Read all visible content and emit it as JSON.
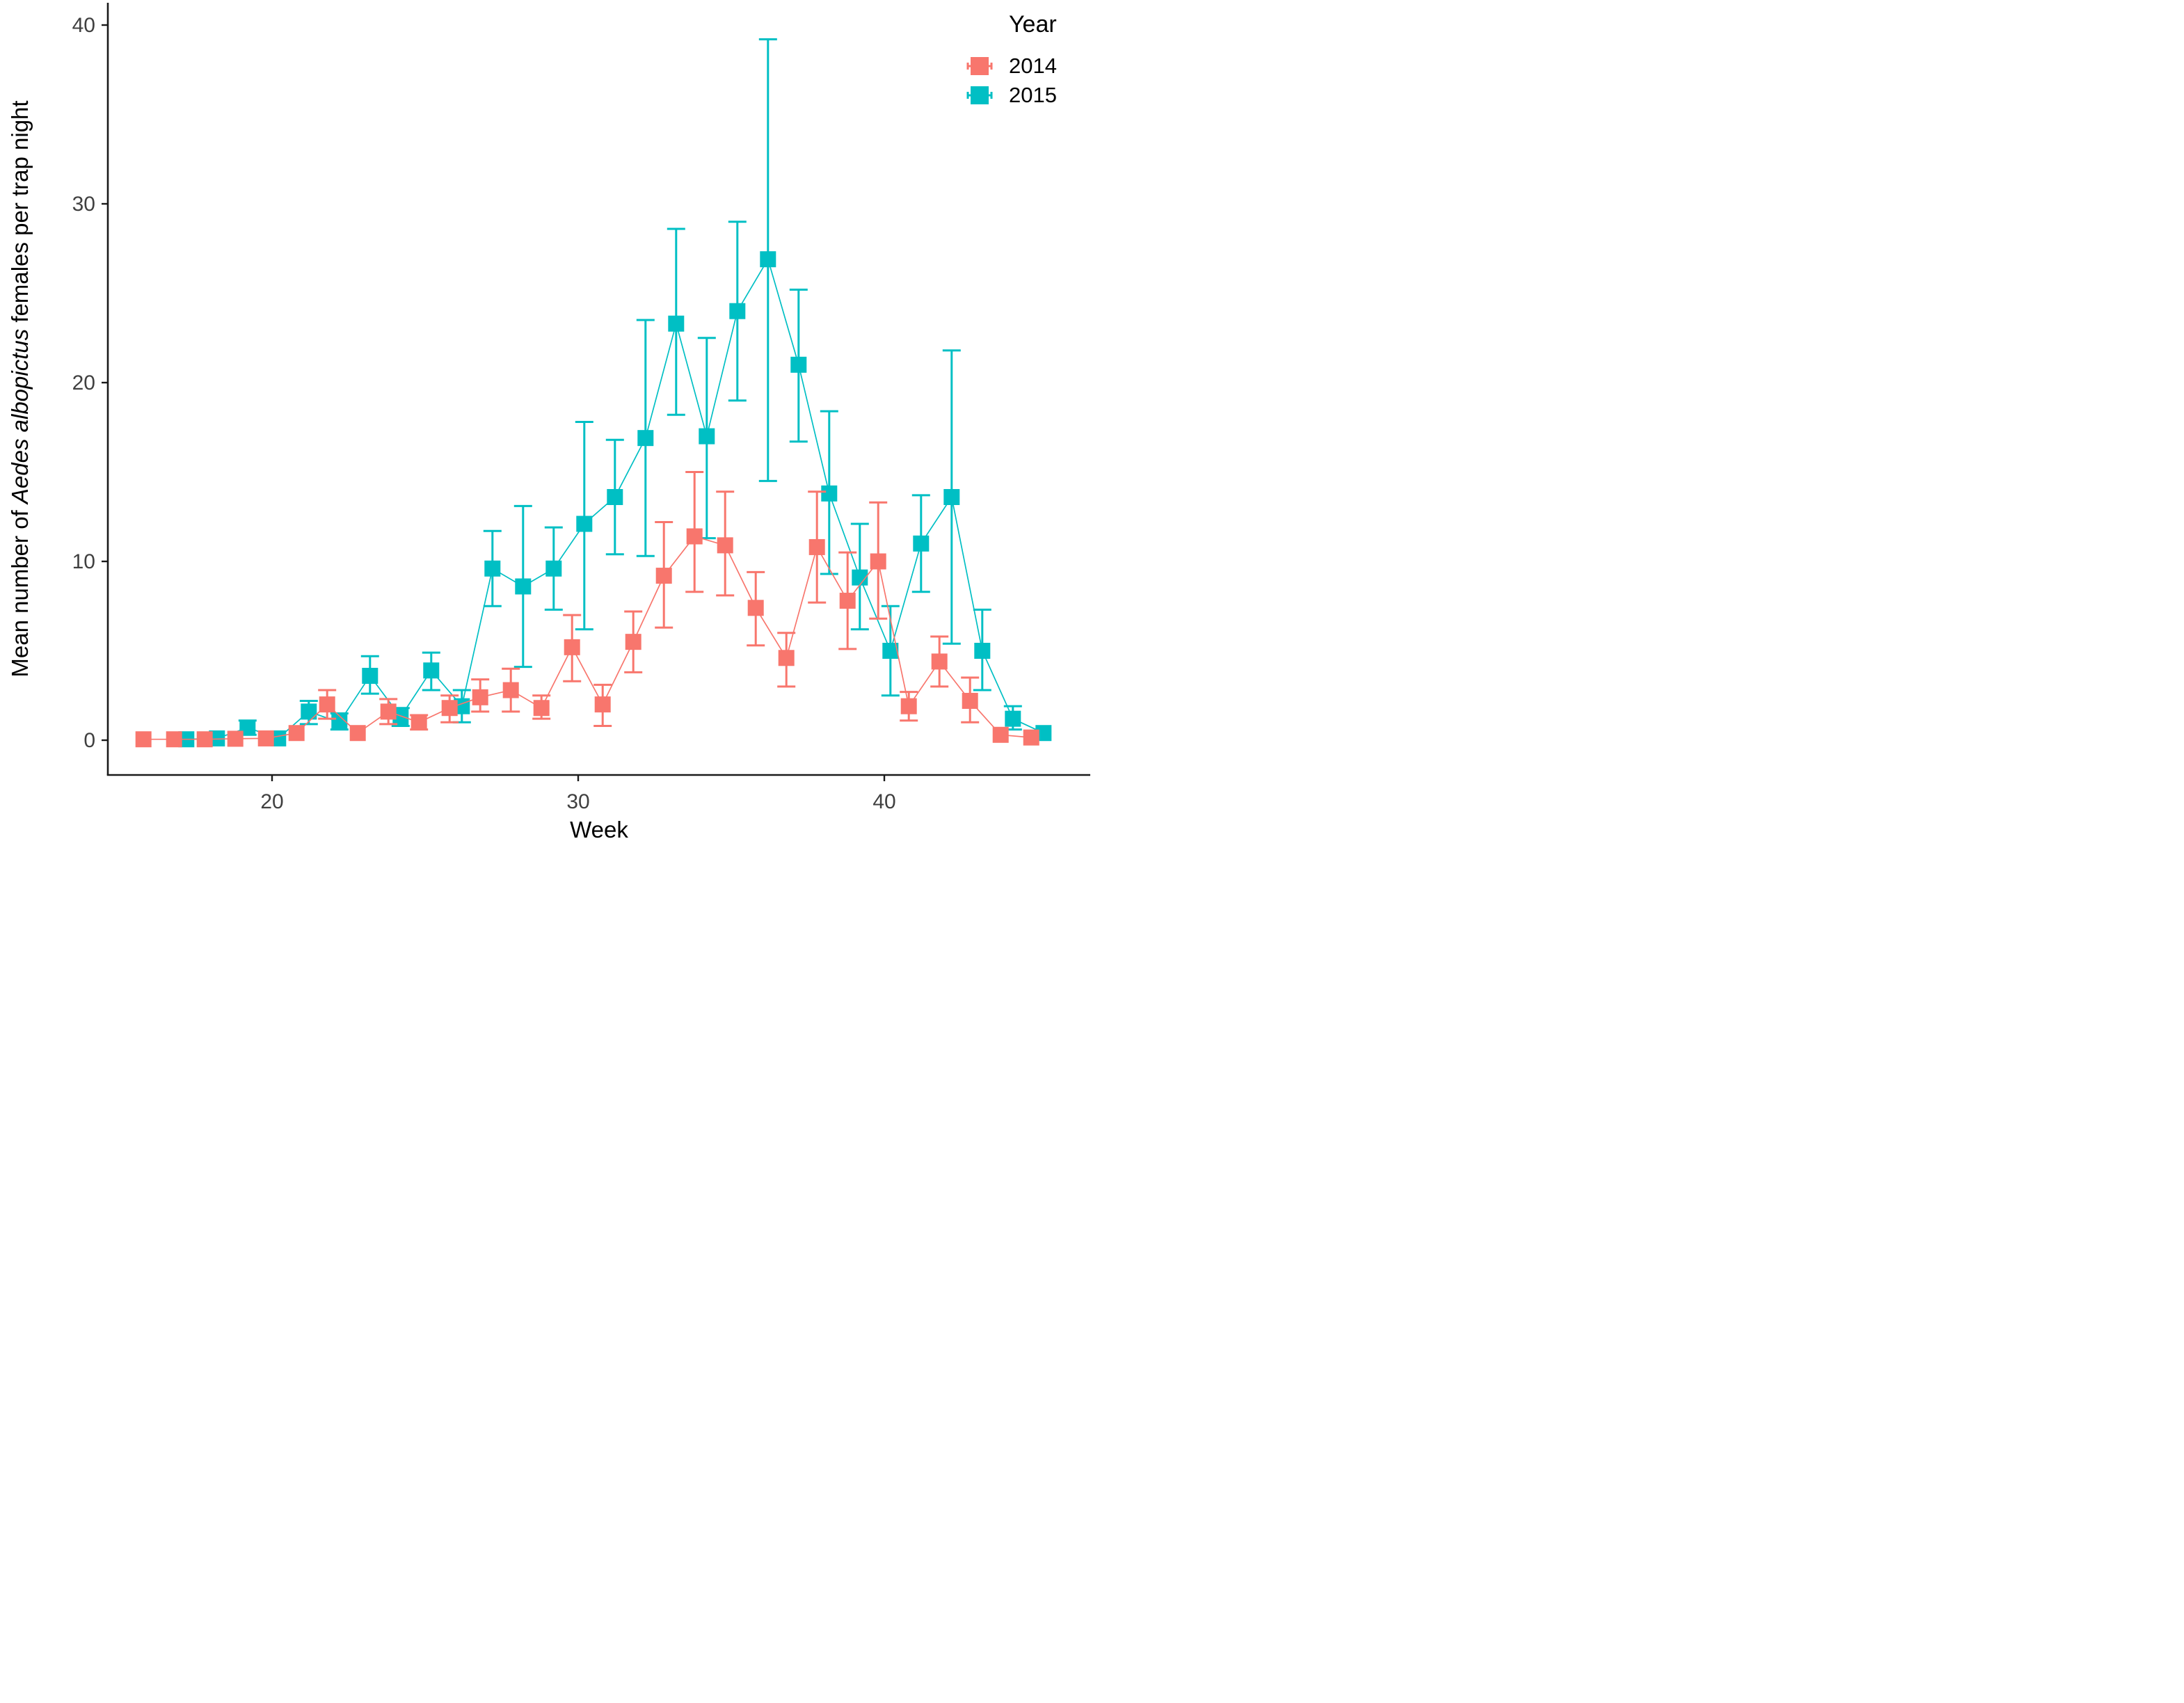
{
  "figure": {
    "background": "#ffffff",
    "axis_color": "#1a1a1a",
    "tick_label_color": "#404040"
  },
  "chart_data": {
    "type": "line",
    "subtype": "dodged points with error bars (ggplot classic theme, no grid)",
    "title": "",
    "xlabel": "Week",
    "ylabel_prefix": "Mean number of ",
    "ylabel_italic": "Aedes albopictus",
    "ylabel_suffix": " females per trap night",
    "x_ticks": [
      20,
      30,
      40
    ],
    "y_ticks": [
      0,
      10,
      20,
      30,
      40
    ],
    "xlim": [
      14.6,
      46.4
    ],
    "ylim": [
      -2.2,
      41.4
    ],
    "grid": false,
    "marker": "square",
    "error_bars": true,
    "legend": {
      "title": "Year",
      "position": "top-right",
      "entries": [
        {
          "label": "2014",
          "color": "#F8766D"
        },
        {
          "label": "2015",
          "color": "#00BFC4"
        }
      ]
    },
    "series": [
      {
        "name": "2015",
        "color": "#00BFC4",
        "dodge": 0.2,
        "points": [
          {
            "week": 17,
            "mean": 0.05,
            "lo": 0.0,
            "hi": 0.15
          },
          {
            "week": 18,
            "mean": 0.1,
            "lo": 0.0,
            "hi": 0.25
          },
          {
            "week": 19,
            "mean": 0.7,
            "lo": 0.3,
            "hi": 1.1
          },
          {
            "week": 20,
            "mean": 0.1,
            "lo": 0.0,
            "hi": 0.3
          },
          {
            "week": 21,
            "mean": 1.6,
            "lo": 0.9,
            "hi": 2.2
          },
          {
            "week": 22,
            "mean": 1.0,
            "lo": 0.6,
            "hi": 1.5
          },
          {
            "week": 23,
            "mean": 3.6,
            "lo": 2.6,
            "hi": 4.7
          },
          {
            "week": 24,
            "mean": 1.3,
            "lo": 0.8,
            "hi": 1.8
          },
          {
            "week": 25,
            "mean": 3.9,
            "lo": 2.8,
            "hi": 4.9
          },
          {
            "week": 26,
            "mean": 1.9,
            "lo": 1.0,
            "hi": 2.8
          },
          {
            "week": 27,
            "mean": 9.6,
            "lo": 7.5,
            "hi": 11.7
          },
          {
            "week": 28,
            "mean": 8.6,
            "lo": 4.1,
            "hi": 13.1
          },
          {
            "week": 29,
            "mean": 9.6,
            "lo": 7.3,
            "hi": 11.9
          },
          {
            "week": 30,
            "mean": 12.1,
            "lo": 6.2,
            "hi": 17.8
          },
          {
            "week": 31,
            "mean": 13.6,
            "lo": 10.4,
            "hi": 16.8
          },
          {
            "week": 32,
            "mean": 16.9,
            "lo": 10.3,
            "hi": 23.5
          },
          {
            "week": 33,
            "mean": 23.3,
            "lo": 18.2,
            "hi": 28.6
          },
          {
            "week": 34,
            "mean": 17.0,
            "lo": 11.3,
            "hi": 22.5
          },
          {
            "week": 35,
            "mean": 24.0,
            "lo": 19.0,
            "hi": 29.0
          },
          {
            "week": 36,
            "mean": 26.9,
            "lo": 14.5,
            "hi": 39.2
          },
          {
            "week": 37,
            "mean": 21.0,
            "lo": 16.7,
            "hi": 25.2
          },
          {
            "week": 38,
            "mean": 13.8,
            "lo": 9.3,
            "hi": 18.4
          },
          {
            "week": 39,
            "mean": 9.1,
            "lo": 6.2,
            "hi": 12.1
          },
          {
            "week": 40,
            "mean": 5.0,
            "lo": 2.5,
            "hi": 7.5
          },
          {
            "week": 41,
            "mean": 11.0,
            "lo": 8.3,
            "hi": 13.7
          },
          {
            "week": 42,
            "mean": 13.6,
            "lo": 5.4,
            "hi": 21.8
          },
          {
            "week": 43,
            "mean": 5.0,
            "lo": 2.8,
            "hi": 7.3
          },
          {
            "week": 44,
            "mean": 1.2,
            "lo": 0.6,
            "hi": 1.9
          },
          {
            "week": 45,
            "mean": 0.4,
            "lo": 0.1,
            "hi": 0.8
          }
        ]
      },
      {
        "name": "2014",
        "color": "#F8766D",
        "dodge": -0.2,
        "points": [
          {
            "week": 16,
            "mean": 0.05,
            "lo": 0.0,
            "hi": 0.15
          },
          {
            "week": 17,
            "mean": 0.05,
            "lo": 0.0,
            "hi": 0.15
          },
          {
            "week": 18,
            "mean": 0.05,
            "lo": 0.0,
            "hi": 0.15
          },
          {
            "week": 19,
            "mean": 0.08,
            "lo": 0.0,
            "hi": 0.2
          },
          {
            "week": 20,
            "mean": 0.1,
            "lo": 0.0,
            "hi": 0.25
          },
          {
            "week": 21,
            "mean": 0.4,
            "lo": 0.1,
            "hi": 0.7
          },
          {
            "week": 22,
            "mean": 2.0,
            "lo": 1.2,
            "hi": 2.8
          },
          {
            "week": 23,
            "mean": 0.4,
            "lo": 0.1,
            "hi": 0.7
          },
          {
            "week": 24,
            "mean": 1.6,
            "lo": 0.9,
            "hi": 2.3
          },
          {
            "week": 25,
            "mean": 1.0,
            "lo": 0.6,
            "hi": 1.4
          },
          {
            "week": 26,
            "mean": 1.8,
            "lo": 1.0,
            "hi": 2.5
          },
          {
            "week": 27,
            "mean": 2.4,
            "lo": 1.6,
            "hi": 3.4
          },
          {
            "week": 28,
            "mean": 2.8,
            "lo": 1.6,
            "hi": 4.0
          },
          {
            "week": 29,
            "mean": 1.8,
            "lo": 1.2,
            "hi": 2.5
          },
          {
            "week": 30,
            "mean": 5.2,
            "lo": 3.3,
            "hi": 7.0
          },
          {
            "week": 31,
            "mean": 2.0,
            "lo": 0.8,
            "hi": 3.1
          },
          {
            "week": 32,
            "mean": 5.5,
            "lo": 3.8,
            "hi": 7.2
          },
          {
            "week": 33,
            "mean": 9.2,
            "lo": 6.3,
            "hi": 12.2
          },
          {
            "week": 34,
            "mean": 11.4,
            "lo": 8.3,
            "hi": 15.0
          },
          {
            "week": 35,
            "mean": 10.9,
            "lo": 8.1,
            "hi": 13.9
          },
          {
            "week": 36,
            "mean": 7.4,
            "lo": 5.3,
            "hi": 9.4
          },
          {
            "week": 37,
            "mean": 4.6,
            "lo": 3.0,
            "hi": 6.0
          },
          {
            "week": 38,
            "mean": 10.8,
            "lo": 7.7,
            "hi": 13.9
          },
          {
            "week": 39,
            "mean": 7.8,
            "lo": 5.1,
            "hi": 10.5
          },
          {
            "week": 40,
            "mean": 10.0,
            "lo": 6.8,
            "hi": 13.3
          },
          {
            "week": 41,
            "mean": 1.9,
            "lo": 1.1,
            "hi": 2.7
          },
          {
            "week": 42,
            "mean": 4.4,
            "lo": 3.0,
            "hi": 5.8
          },
          {
            "week": 43,
            "mean": 2.2,
            "lo": 1.0,
            "hi": 3.5
          },
          {
            "week": 44,
            "mean": 0.3,
            "lo": 0.0,
            "hi": 0.6
          },
          {
            "week": 45,
            "mean": 0.15,
            "lo": 0.0,
            "hi": 0.4
          }
        ]
      }
    ]
  }
}
